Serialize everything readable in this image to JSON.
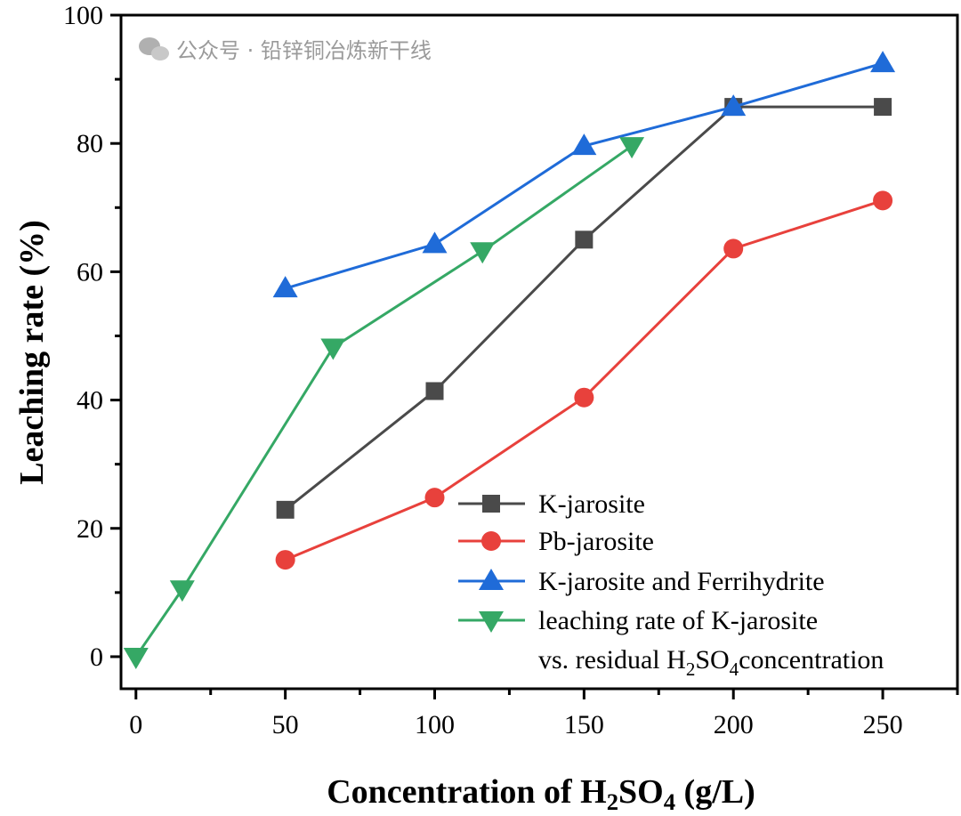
{
  "chart_data": {
    "type": "line",
    "title": "",
    "xlabel_parts": [
      "Concentration of H",
      "2",
      "SO",
      "4",
      " (g/L)"
    ],
    "ylabel": "Leaching rate (%)",
    "xlim": [
      -5,
      275
    ],
    "ylim": [
      -5,
      100
    ],
    "xticks": [
      0,
      50,
      100,
      150,
      200,
      250
    ],
    "yticks": [
      0,
      20,
      40,
      60,
      80,
      100
    ],
    "grid": false,
    "legend_placement": "bottom-right",
    "series": [
      {
        "name": "K-jarosite",
        "legend_parts": [
          "K-jarosite"
        ],
        "marker": "square",
        "color": "#4a4a4a",
        "x": [
          50,
          100,
          150,
          200,
          250
        ],
        "y": [
          22.9,
          41.4,
          65.0,
          85.7,
          85.7
        ]
      },
      {
        "name": "Pb-jarosite",
        "legend_parts": [
          "Pb-jarosite"
        ],
        "marker": "circle",
        "color": "#e8413c",
        "x": [
          50,
          100,
          150,
          200,
          250
        ],
        "y": [
          15.1,
          24.8,
          40.4,
          63.6,
          71.1
        ]
      },
      {
        "name": "K-jarosite and Ferrihydrite",
        "legend_parts": [
          "K-jarosite and Ferrihydrite"
        ],
        "marker": "triangle-up",
        "color": "#1f6bd8",
        "x": [
          50,
          100,
          150,
          200,
          250
        ],
        "y": [
          57.4,
          64.3,
          79.6,
          85.7,
          92.5
        ]
      },
      {
        "name": "leaching rate of K-jarosite vs. residual H2SO4concentration",
        "legend_parts": [
          "leaching rate of K-jarosite",
          "vs. residual H",
          "2",
          "SO",
          "4",
          "concentration"
        ],
        "marker": "triangle-down",
        "color": "#35a865",
        "x": [
          0,
          15.5,
          66,
          116,
          166
        ],
        "y": [
          0,
          10.5,
          48.2,
          63.2,
          79.6
        ]
      }
    ]
  },
  "watermark": "公众号 · 铅锌铜冶炼新干线"
}
